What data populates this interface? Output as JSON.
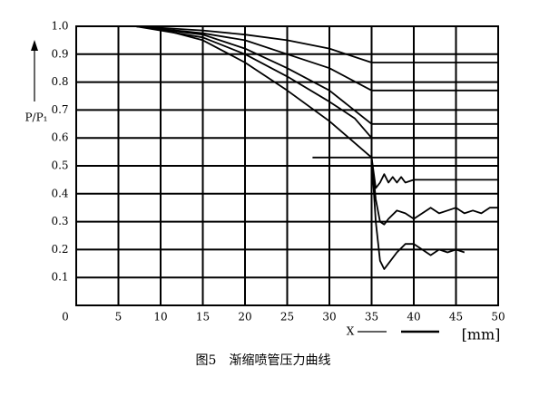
{
  "chart_data": {
    "type": "line",
    "caption": "图5　渐缩喷管压力曲线",
    "y_label": "P/P₁",
    "x_label": "X",
    "x_unit": "[mm]",
    "xlim": [
      0,
      50
    ],
    "ylim": [
      0,
      1
    ],
    "xticks": [
      0,
      5,
      10,
      15,
      20,
      25,
      30,
      35,
      40,
      45,
      50
    ],
    "yticks": [
      0.1,
      0.2,
      0.3,
      0.4,
      0.5,
      0.6,
      0.7,
      0.8,
      0.9,
      {
        "value": 1,
        "label": "1.0"
      }
    ],
    "grid": true,
    "series": [
      {
        "color": "#000000",
        "x": [
          7,
          15,
          20,
          25,
          30,
          35,
          35,
          50
        ],
        "values": [
          1.0,
          0.985,
          0.97,
          0.95,
          0.92,
          0.87,
          0.87,
          0.87
        ]
      },
      {
        "color": "#000000",
        "x": [
          7,
          15,
          20,
          25,
          30,
          35,
          50
        ],
        "values": [
          1.0,
          0.975,
          0.95,
          0.9,
          0.85,
          0.77,
          0.77
        ]
      },
      {
        "color": "#000000",
        "x": [
          7,
          15,
          20,
          25,
          30,
          35,
          50
        ],
        "values": [
          1.0,
          0.97,
          0.92,
          0.85,
          0.77,
          0.65,
          0.65
        ]
      },
      {
        "color": "#000000",
        "x": [
          7,
          15,
          20,
          25,
          30,
          33,
          35,
          50
        ],
        "values": [
          1.0,
          0.96,
          0.9,
          0.82,
          0.73,
          0.67,
          0.6,
          0.6
        ]
      },
      {
        "color": "#000000",
        "x": [
          7,
          10,
          15,
          20,
          25,
          30,
          35,
          35.5,
          36,
          36.5,
          37,
          37.5,
          38,
          38.5,
          39,
          40,
          50
        ],
        "values": [
          1.0,
          0.99,
          0.95,
          0.87,
          0.77,
          0.66,
          0.53,
          0.42,
          0.44,
          0.47,
          0.44,
          0.46,
          0.44,
          0.46,
          0.44,
          0.45,
          0.45
        ]
      },
      {
        "color": "#000000",
        "x": [
          35,
          35.5,
          36,
          36.5,
          37,
          38,
          39,
          40,
          41,
          42,
          43,
          44,
          45,
          46,
          47,
          48,
          49,
          50
        ],
        "values": [
          0.53,
          0.38,
          0.3,
          0.29,
          0.31,
          0.34,
          0.33,
          0.31,
          0.33,
          0.35,
          0.33,
          0.34,
          0.35,
          0.33,
          0.34,
          0.33,
          0.35,
          0.35
        ]
      },
      {
        "color": "#000000",
        "x": [
          35,
          35.5,
          36,
          36.5,
          37,
          38,
          39,
          40,
          41,
          42,
          43,
          44,
          45,
          46
        ],
        "values": [
          0.53,
          0.3,
          0.16,
          0.13,
          0.15,
          0.19,
          0.22,
          0.22,
          0.2,
          0.18,
          0.2,
          0.19,
          0.2,
          0.19
        ]
      },
      {
        "color": "#000000",
        "x": [
          28,
          50
        ],
        "values": [
          0.53,
          0.53
        ]
      }
    ]
  }
}
